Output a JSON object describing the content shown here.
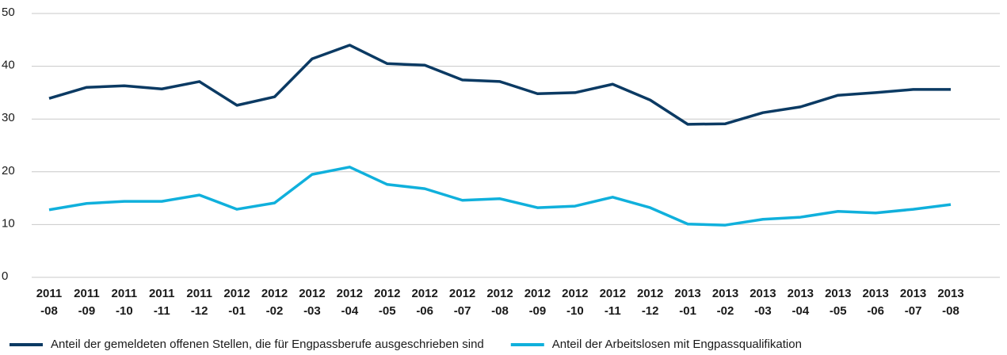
{
  "chart_data": {
    "type": "line",
    "categories": [
      "2011-08",
      "2011-09",
      "2011-10",
      "2011-11",
      "2011-12",
      "2012-01",
      "2012-02",
      "2012-03",
      "2012-04",
      "2012-05",
      "2012-06",
      "2012-07",
      "2012-08",
      "2012-09",
      "2012-10",
      "2012-11",
      "2012-12",
      "2013-01",
      "2013-02",
      "2013-03",
      "2013-04",
      "2013-05",
      "2013-06",
      "2013-07",
      "2013-08"
    ],
    "series": [
      {
        "name": "Anteil der gemeldeten offenen Stellen, die für Engpassberufe ausgeschrieben sind",
        "color": "#0b3a63",
        "values": [
          33.9,
          36.0,
          36.3,
          35.7,
          37.1,
          32.6,
          34.2,
          41.4,
          44.0,
          40.5,
          40.2,
          37.4,
          37.1,
          34.8,
          35.0,
          36.6,
          33.6,
          29.0,
          29.1,
          31.2,
          32.3,
          34.5,
          35.0,
          35.6,
          35.6
        ]
      },
      {
        "name": "Anteil der Arbeitslosen mit Engpassqualifikation",
        "color": "#10b0dc",
        "values": [
          12.8,
          14.0,
          14.4,
          14.4,
          15.6,
          12.9,
          14.1,
          19.5,
          20.9,
          17.6,
          16.8,
          14.6,
          14.9,
          13.2,
          13.5,
          15.2,
          13.2,
          10.1,
          9.9,
          11.0,
          11.4,
          12.5,
          12.2,
          12.9,
          13.8
        ]
      }
    ],
    "ylim": [
      0,
      50
    ],
    "yticks": [
      0,
      10,
      20,
      30,
      40,
      50
    ],
    "grid": true
  }
}
